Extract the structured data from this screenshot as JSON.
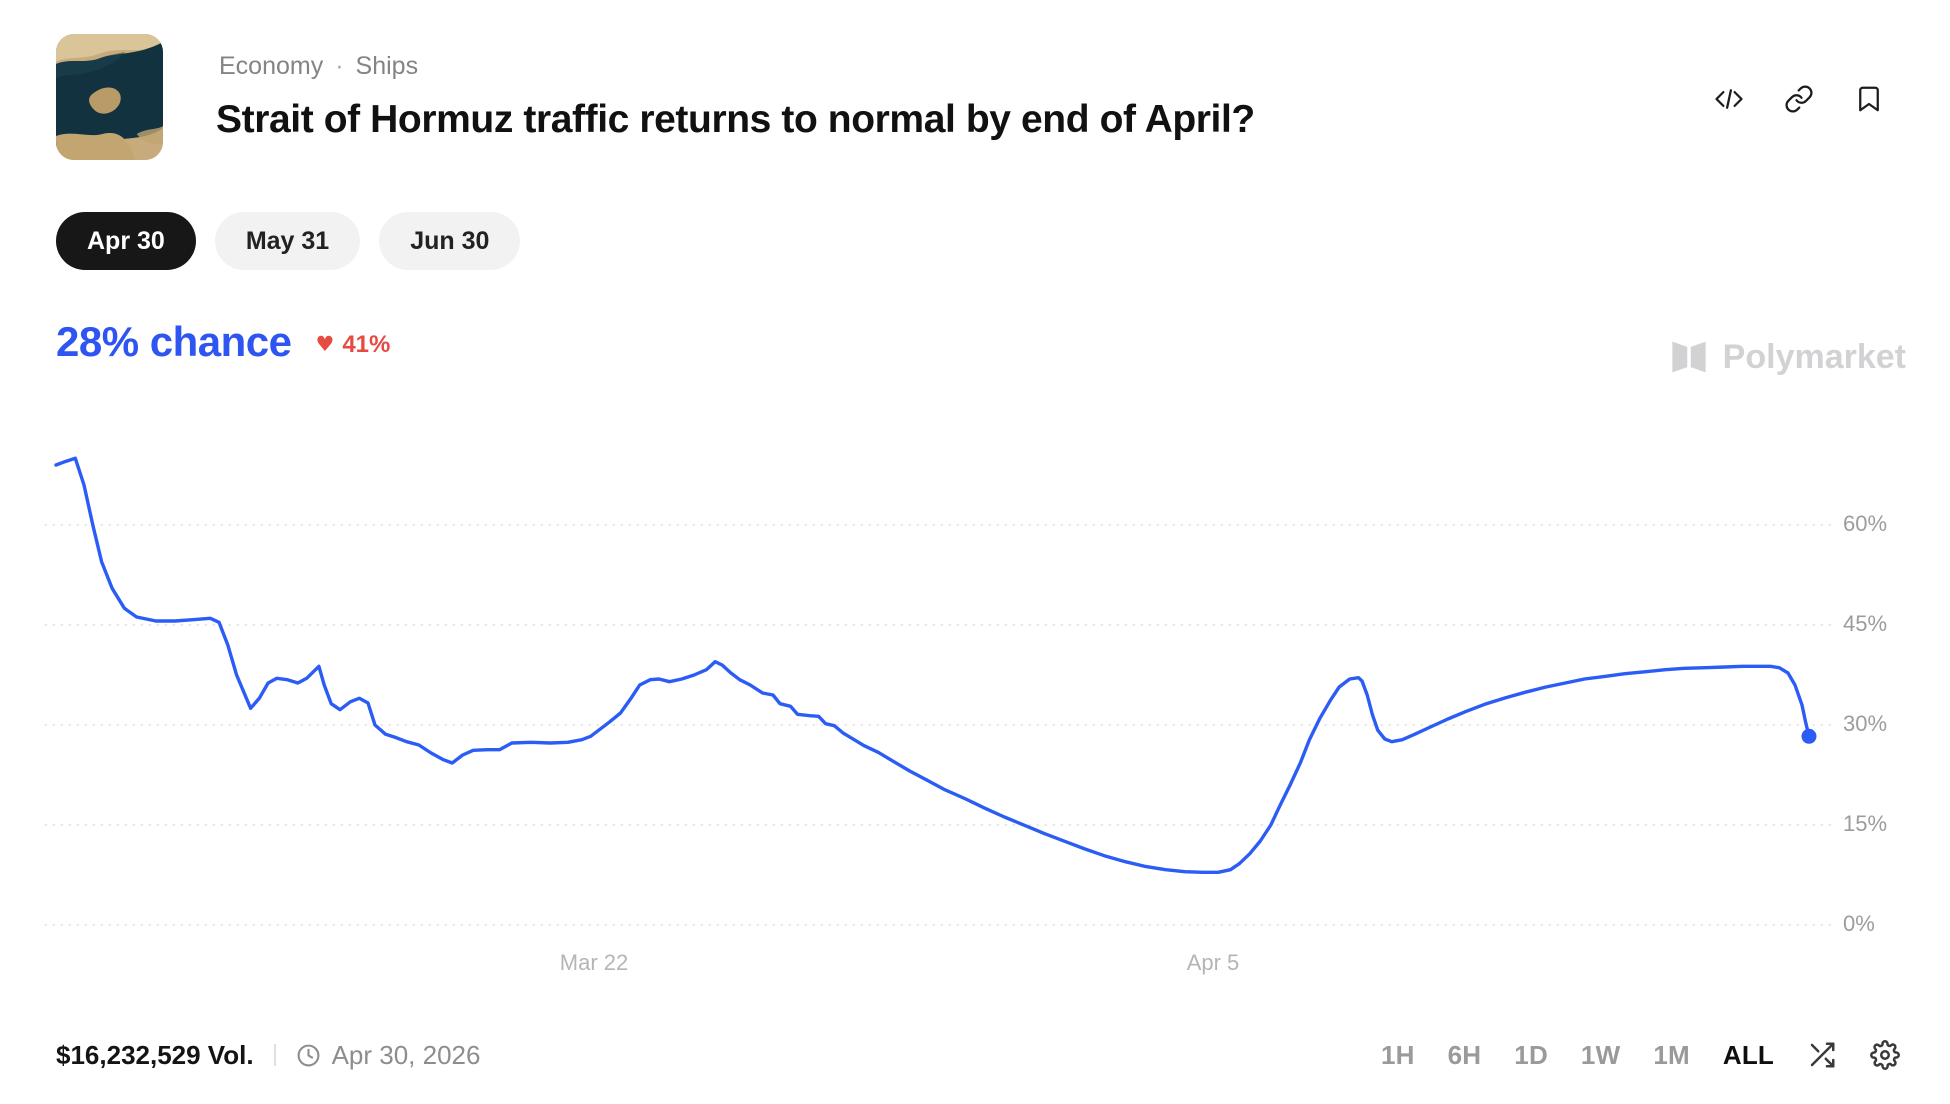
{
  "header": {
    "breadcrumb": {
      "items": [
        "Economy",
        "Ships"
      ],
      "separator": "·"
    },
    "title": "Strait of Hormuz traffic returns to normal by end of April?",
    "action_icons": [
      "embed-icon",
      "link-icon",
      "bookmark-icon"
    ]
  },
  "outcome_tabs": [
    {
      "label": "Apr 30",
      "active": true
    },
    {
      "label": "May 31",
      "active": false
    },
    {
      "label": "Jun 30",
      "active": false
    }
  ],
  "chance": {
    "text": "28% chance",
    "heart_glyph": "♥",
    "change": "41%",
    "direction": "down"
  },
  "watermark": {
    "brand": "Polymarket"
  },
  "chart_data": {
    "type": "line",
    "series_name": "Apr 30 — chance",
    "color": "#2b5cf6",
    "ylabel": "",
    "xlabel": "",
    "ylim": [
      0,
      70
    ],
    "grid": "horizontal-dotted",
    "y_axis_side": "right",
    "y_ticks": [
      {
        "label": "60%",
        "value": 60
      },
      {
        "label": "45%",
        "value": 45
      },
      {
        "label": "30%",
        "value": 30
      },
      {
        "label": "15%",
        "value": 15
      },
      {
        "label": "0%",
        "value": 0
      }
    ],
    "x_ticks": [
      {
        "label": "Mar 22",
        "pos": 0.307
      },
      {
        "label": "Apr 5",
        "pos": 0.66
      }
    ],
    "end_marker": true,
    "points": [
      [
        0.0,
        69
      ],
      [
        0.005,
        69.5
      ],
      [
        0.011,
        70
      ],
      [
        0.016,
        66
      ],
      [
        0.021,
        60
      ],
      [
        0.026,
        54.5
      ],
      [
        0.032,
        50.5
      ],
      [
        0.039,
        47.5
      ],
      [
        0.046,
        46.2
      ],
      [
        0.057,
        45.6
      ],
      [
        0.068,
        45.6
      ],
      [
        0.078,
        45.8
      ],
      [
        0.088,
        46
      ],
      [
        0.093,
        45.4
      ],
      [
        0.098,
        42
      ],
      [
        0.103,
        37.5
      ],
      [
        0.111,
        32.5
      ],
      [
        0.116,
        34
      ],
      [
        0.121,
        36.3
      ],
      [
        0.126,
        37
      ],
      [
        0.132,
        36.8
      ],
      [
        0.138,
        36.3
      ],
      [
        0.143,
        37
      ],
      [
        0.15,
        38.8
      ],
      [
        0.153,
        36
      ],
      [
        0.157,
        33.2
      ],
      [
        0.162,
        32.3
      ],
      [
        0.168,
        33.5
      ],
      [
        0.173,
        34
      ],
      [
        0.178,
        33.3
      ],
      [
        0.182,
        30
      ],
      [
        0.188,
        28.6
      ],
      [
        0.193,
        28.2
      ],
      [
        0.2,
        27.5
      ],
      [
        0.207,
        27
      ],
      [
        0.214,
        25.8
      ],
      [
        0.221,
        24.8
      ],
      [
        0.226,
        24.3
      ],
      [
        0.232,
        25.5
      ],
      [
        0.238,
        26.2
      ],
      [
        0.246,
        26.3
      ],
      [
        0.253,
        26.3
      ],
      [
        0.26,
        27.3
      ],
      [
        0.271,
        27.4
      ],
      [
        0.282,
        27.3
      ],
      [
        0.292,
        27.4
      ],
      [
        0.3,
        27.8
      ],
      [
        0.305,
        28.3
      ],
      [
        0.31,
        29.3
      ],
      [
        0.316,
        30.5
      ],
      [
        0.322,
        31.8
      ],
      [
        0.328,
        34
      ],
      [
        0.333,
        36
      ],
      [
        0.339,
        36.8
      ],
      [
        0.344,
        36.9
      ],
      [
        0.35,
        36.5
      ],
      [
        0.357,
        36.9
      ],
      [
        0.364,
        37.5
      ],
      [
        0.371,
        38.3
      ],
      [
        0.376,
        39.5
      ],
      [
        0.38,
        39
      ],
      [
        0.385,
        37.8
      ],
      [
        0.39,
        36.8
      ],
      [
        0.396,
        36
      ],
      [
        0.403,
        34.8
      ],
      [
        0.409,
        34.5
      ],
      [
        0.413,
        33.2
      ],
      [
        0.419,
        32.8
      ],
      [
        0.423,
        31.6
      ],
      [
        0.43,
        31.4
      ],
      [
        0.435,
        31.3
      ],
      [
        0.439,
        30.2
      ],
      [
        0.444,
        29.9
      ],
      [
        0.449,
        28.8
      ],
      [
        0.454,
        28
      ],
      [
        0.461,
        26.9
      ],
      [
        0.469,
        25.9
      ],
      [
        0.478,
        24.5
      ],
      [
        0.487,
        23.1
      ],
      [
        0.497,
        21.7
      ],
      [
        0.507,
        20.3
      ],
      [
        0.519,
        18.9
      ],
      [
        0.53,
        17.5
      ],
      [
        0.541,
        16.2
      ],
      [
        0.553,
        14.9
      ],
      [
        0.564,
        13.7
      ],
      [
        0.576,
        12.5
      ],
      [
        0.587,
        11.4
      ],
      [
        0.598,
        10.4
      ],
      [
        0.61,
        9.5
      ],
      [
        0.621,
        8.8
      ],
      [
        0.633,
        8.3
      ],
      [
        0.644,
        8
      ],
      [
        0.654,
        7.9
      ],
      [
        0.663,
        7.9
      ],
      [
        0.67,
        8.3
      ],
      [
        0.675,
        9.2
      ],
      [
        0.681,
        10.7
      ],
      [
        0.687,
        12.6
      ],
      [
        0.693,
        15
      ],
      [
        0.698,
        17.8
      ],
      [
        0.704,
        21
      ],
      [
        0.71,
        24.4
      ],
      [
        0.715,
        27.8
      ],
      [
        0.721,
        31
      ],
      [
        0.727,
        33.7
      ],
      [
        0.732,
        35.7
      ],
      [
        0.738,
        36.9
      ],
      [
        0.743,
        37.1
      ],
      [
        0.745,
        36.6
      ],
      [
        0.748,
        34.5
      ],
      [
        0.751,
        31.5
      ],
      [
        0.754,
        29.2
      ],
      [
        0.758,
        27.9
      ],
      [
        0.762,
        27.5
      ],
      [
        0.768,
        27.8
      ],
      [
        0.775,
        28.6
      ],
      [
        0.784,
        29.7
      ],
      [
        0.794,
        30.9
      ],
      [
        0.804,
        32
      ],
      [
        0.815,
        33.1
      ],
      [
        0.827,
        34.1
      ],
      [
        0.838,
        34.9
      ],
      [
        0.85,
        35.7
      ],
      [
        0.861,
        36.3
      ],
      [
        0.872,
        36.9
      ],
      [
        0.884,
        37.3
      ],
      [
        0.895,
        37.7
      ],
      [
        0.907,
        38
      ],
      [
        0.918,
        38.3
      ],
      [
        0.929,
        38.5
      ],
      [
        0.941,
        38.6
      ],
      [
        0.952,
        38.7
      ],
      [
        0.962,
        38.8
      ],
      [
        0.971,
        38.8
      ],
      [
        0.978,
        38.8
      ],
      [
        0.983,
        38.6
      ],
      [
        0.988,
        37.8
      ],
      [
        0.992,
        36
      ],
      [
        0.996,
        33
      ],
      [
        0.998,
        30.5
      ],
      [
        1.0,
        28.3
      ]
    ]
  },
  "footer": {
    "volume": "$16,232,529 Vol.",
    "end_date": "Apr 30, 2026",
    "ranges": [
      "1H",
      "6H",
      "1D",
      "1W",
      "1M",
      "ALL"
    ],
    "active_range": "ALL"
  }
}
